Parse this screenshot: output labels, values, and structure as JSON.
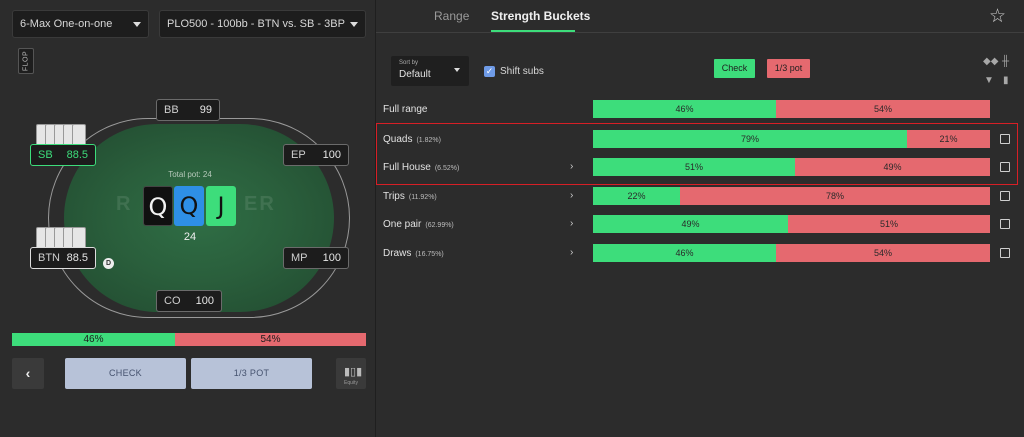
{
  "dropdowns": {
    "game_type": "6-Max One-on-one",
    "scenario": "PLO500 - 100bb - BTN vs. SB - 3BP"
  },
  "street_label": "FLOP",
  "table": {
    "logo_text": "R",
    "logo_text_right": "ER",
    "pot_label": "Total pot: 24",
    "pot_amount": "24",
    "board": [
      "Q",
      "Q",
      "J"
    ],
    "dealer_button": "D",
    "seats": {
      "bb": {
        "pos": "BB",
        "stack": "99"
      },
      "sb": {
        "pos": "SB",
        "stack": "88.5"
      },
      "ep": {
        "pos": "EP",
        "stack": "100"
      },
      "btn": {
        "pos": "BTN",
        "stack": "88.5"
      },
      "mp": {
        "pos": "MP",
        "stack": "100"
      },
      "co": {
        "pos": "CO",
        "stack": "100"
      }
    }
  },
  "strategy_bar": {
    "check": "46%",
    "bet": "54%",
    "check_frac": 0.46
  },
  "actions": {
    "prev": "‹",
    "check": "CHECK",
    "bet": "1/3 POT",
    "equity_caption": "Equity"
  },
  "tabs": [
    {
      "label": "Range",
      "active": false
    },
    {
      "label": "Strength Buckets",
      "active": true
    }
  ],
  "controls": {
    "sort_label": "Sort by",
    "sort_value": "Default",
    "shift_subs_label": "Shift subs",
    "shift_subs_checked": true,
    "legend_check": "Check",
    "legend_bet": "1/3 pot"
  },
  "colors": {
    "check": "#3ddd7b",
    "bet": "#e5696f",
    "highlight": "#d71f26",
    "accent": "#3ddd7b"
  },
  "buckets": [
    {
      "label": "Full range",
      "pct": "",
      "expandable": false,
      "check": "46%",
      "bet": "54%",
      "check_frac": 0.46,
      "checkbox": false
    },
    {
      "label": "Quads",
      "pct": "(1.82%)",
      "expandable": false,
      "check": "79%",
      "bet": "21%",
      "check_frac": 0.79,
      "checkbox": true
    },
    {
      "label": "Full House",
      "pct": "(6.52%)",
      "expandable": true,
      "check": "51%",
      "bet": "49%",
      "check_frac": 0.51,
      "checkbox": true
    },
    {
      "label": "Trips",
      "pct": "(11.92%)",
      "expandable": true,
      "check": "22%",
      "bet": "78%",
      "check_frac": 0.22,
      "checkbox": true
    },
    {
      "label": "One pair",
      "pct": "(62.99%)",
      "expandable": true,
      "check": "49%",
      "bet": "51%",
      "check_frac": 0.49,
      "checkbox": true
    },
    {
      "label": "Draws",
      "pct": "(16.75%)",
      "expandable": true,
      "check": "46%",
      "bet": "54%",
      "check_frac": 0.46,
      "checkbox": true
    }
  ]
}
